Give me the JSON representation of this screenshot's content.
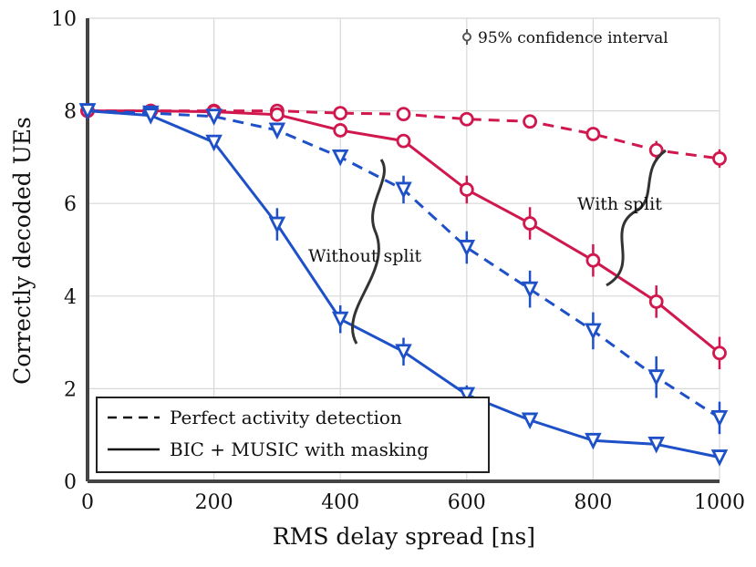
{
  "chart_data": {
    "type": "line",
    "xlabel": "RMS delay spread [ns]",
    "ylabel": "Correctly decoded UEs",
    "xlim": [
      0,
      1000
    ],
    "ylim": [
      0,
      10
    ],
    "xticks": [
      0,
      200,
      400,
      600,
      800,
      1000
    ],
    "yticks": [
      0,
      2,
      4,
      6,
      8,
      10
    ],
    "grid": true,
    "x": [
      0,
      100,
      200,
      300,
      400,
      500,
      600,
      700,
      800,
      900,
      1000
    ],
    "series": [
      {
        "color": "#d0184e",
        "marker": "circle",
        "dash": true,
        "values": [
          8.0,
          8.0,
          8.0,
          8.0,
          7.95,
          7.93,
          7.82,
          7.77,
          7.5,
          7.15,
          6.97
        ],
        "err": [
          0.05,
          0.05,
          0.05,
          0.1,
          0.1,
          0.1,
          0.1,
          0.1,
          0.12,
          0.2,
          0.2
        ]
      },
      {
        "color": "#d0184e",
        "marker": "circle",
        "dash": false,
        "values": [
          8.0,
          8.0,
          7.98,
          7.92,
          7.58,
          7.35,
          6.3,
          5.57,
          4.77,
          3.88,
          2.77
        ],
        "err": [
          0.05,
          0.05,
          0.05,
          0.1,
          0.12,
          0.15,
          0.3,
          0.35,
          0.35,
          0.35,
          0.35
        ]
      },
      {
        "color": "#1e50c8",
        "marker": "triangle",
        "dash": true,
        "values": [
          8.0,
          7.95,
          7.88,
          7.58,
          7.0,
          6.3,
          5.05,
          4.15,
          3.25,
          2.25,
          1.37
        ],
        "err": [
          0.05,
          0.05,
          0.1,
          0.1,
          0.15,
          0.3,
          0.35,
          0.4,
          0.4,
          0.45,
          0.35
        ]
      },
      {
        "color": "#1e50c8",
        "marker": "triangle",
        "dash": false,
        "values": [
          8.0,
          7.9,
          7.32,
          5.55,
          3.5,
          2.8,
          1.87,
          1.32,
          0.88,
          0.8,
          0.52
        ],
        "err": [
          0.05,
          0.05,
          0.15,
          0.35,
          0.3,
          0.3,
          0.2,
          0.1,
          0.1,
          0.1,
          0.1
        ]
      }
    ],
    "legend": {
      "position": "bottom-left",
      "entries": [
        {
          "label": "Perfect activity detection",
          "dash": true
        },
        {
          "label": "BIC + MUSIC with masking",
          "dash": false
        }
      ]
    },
    "annotations": {
      "ci": "95% confidence interval",
      "with_split": "With split",
      "without_split": "Without split"
    }
  }
}
